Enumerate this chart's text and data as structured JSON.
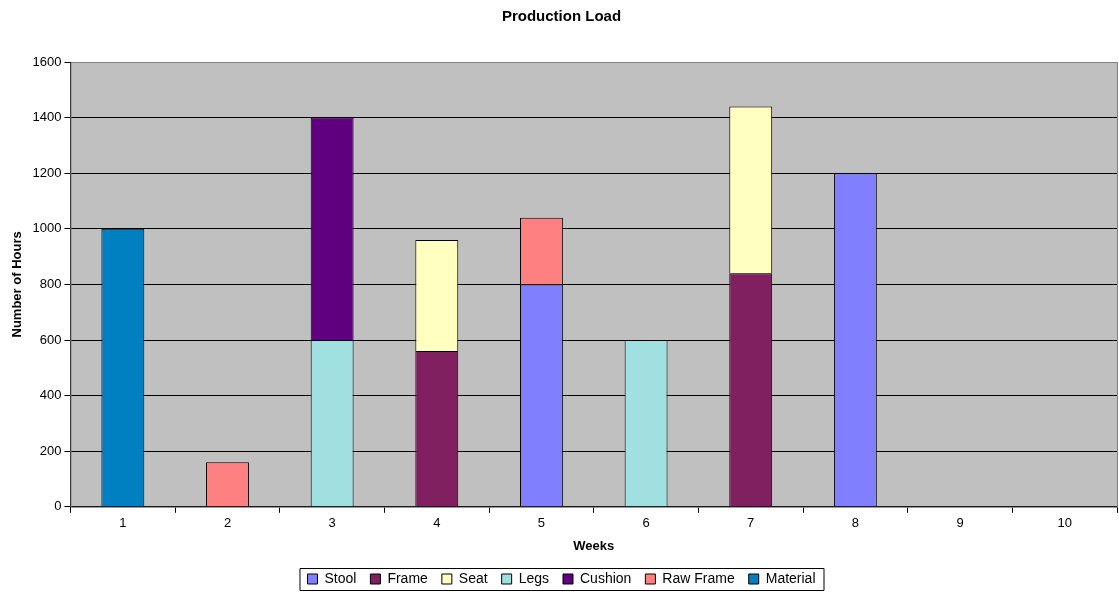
{
  "chart_data": {
    "type": "bar",
    "title": "Production Load",
    "xlabel": "Weeks",
    "ylabel": "Number of Hours",
    "categories": [
      "1",
      "2",
      "3",
      "4",
      "5",
      "6",
      "7",
      "8",
      "9",
      "10"
    ],
    "stacked": true,
    "ylim": [
      0,
      1600
    ],
    "yticks": [
      0,
      200,
      400,
      600,
      800,
      1000,
      1200,
      1400,
      1600
    ],
    "grid": "y",
    "legend": "bottom",
    "series": [
      {
        "name": "Stool",
        "color": "#8080ff",
        "values": [
          null,
          null,
          null,
          null,
          800,
          null,
          null,
          1200,
          null,
          null
        ]
      },
      {
        "name": "Frame",
        "color": "#802060",
        "values": [
          null,
          null,
          null,
          560,
          null,
          null,
          840,
          null,
          null,
          null
        ]
      },
      {
        "name": "Seat",
        "color": "#ffffc0",
        "values": [
          null,
          null,
          null,
          400,
          null,
          null,
          600,
          null,
          null,
          null
        ]
      },
      {
        "name": "Legs",
        "color": "#a0e0e0",
        "values": [
          null,
          null,
          600,
          null,
          null,
          600,
          null,
          null,
          null,
          null
        ]
      },
      {
        "name": "Cushion",
        "color": "#600080",
        "values": [
          null,
          null,
          800,
          null,
          null,
          null,
          null,
          null,
          null,
          null
        ]
      },
      {
        "name": "Raw Frame",
        "color": "#ff8080",
        "values": [
          null,
          160,
          null,
          null,
          240,
          null,
          null,
          null,
          null,
          null
        ]
      },
      {
        "name": "Material",
        "color": "#0080c0",
        "values": [
          1000,
          null,
          null,
          null,
          null,
          null,
          null,
          null,
          null,
          null
        ]
      }
    ]
  }
}
